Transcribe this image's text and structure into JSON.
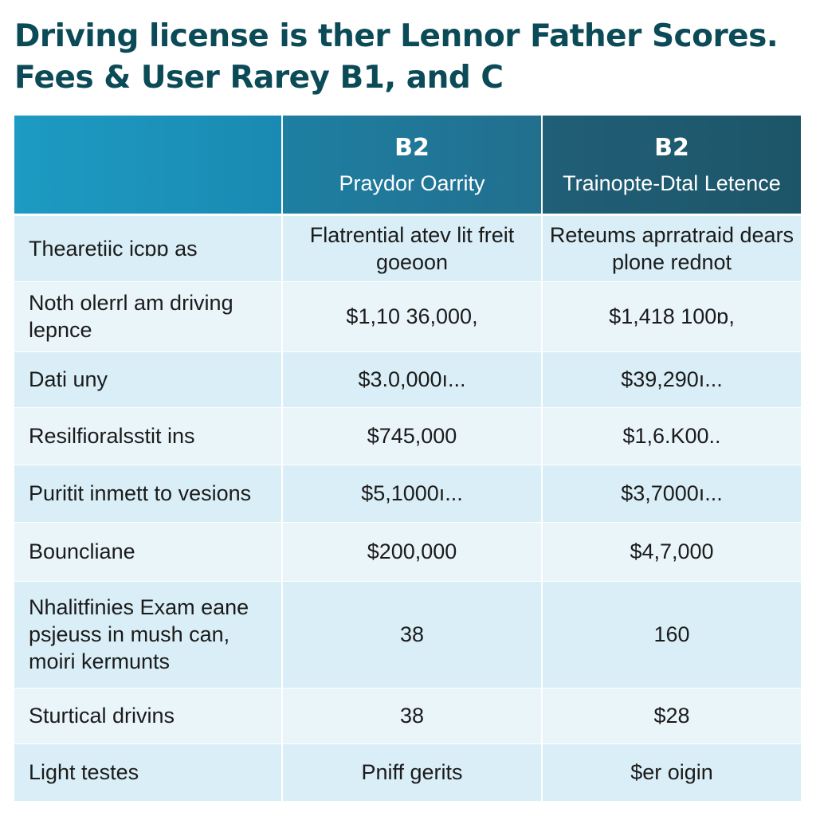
{
  "title": {
    "line1": "Driving license is ther Lennor Father Scores.",
    "line2": "Fees & User Rarey B1, and C"
  },
  "table": {
    "columns": [
      {
        "code": "",
        "name": ""
      },
      {
        "code": "B2",
        "name": "Praydor Oarrity"
      },
      {
        "code": "B2",
        "name": "Trainopte-Dtal Letence"
      }
    ],
    "rows": [
      {
        "label": "Thearetiic iᴄɒɒ as",
        "c1": "Flatrential atev lit freit goeoon",
        "c2": "Reteums aprratraid dears plone rednot"
      },
      {
        "label": "Noth olerrl am driving lepnce",
        "c1": "$1,10 36,000,",
        "c2": "$1,418 100ɒ,"
      },
      {
        "label": "Dati uny",
        "c1": "$3.0,000ı...",
        "c2": "$39,290ı..."
      },
      {
        "label": "Resilfioralsstit ins",
        "c1": "$745,000",
        "c2": "$1,6.K00.."
      },
      {
        "label": "Puritit inmett to vesions",
        "c1": "$5,1000ı...",
        "c2": "$3,7000ı..."
      },
      {
        "label": "Bouncliane",
        "c1": "$200,000",
        "c2": "$4,7,000"
      },
      {
        "label": "Nhalitfinies Exam eane psjeuss in mush can, moiri kermunts",
        "c1": "38",
        "c2": "160"
      },
      {
        "label": "Sturtical drivins",
        "c1": "38",
        "c2": "$28"
      },
      {
        "label": "Light testes",
        "c1": "Pniff gerits",
        "c2": "$er oigin"
      }
    ]
  }
}
